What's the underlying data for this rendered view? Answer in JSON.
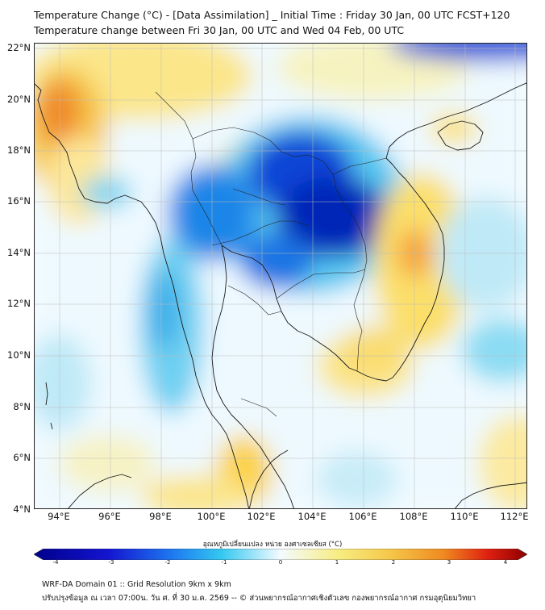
{
  "title_line1": "Temperature Change (°C) - [Data Assimilation] _ Initial Time : Friday 30 Jan, 00 UTC FCST+120",
  "title_line2": "Temperature change between Fri 30 Jan, 00 UTC and Wed 04 Feb, 00 UTC",
  "map": {
    "lat_range": [
      4,
      22
    ],
    "lon_range": [
      93,
      112.5
    ],
    "lat_labels": [
      "22°N",
      "20°N",
      "18°N",
      "16°N",
      "14°N",
      "12°N",
      "10°N",
      "8°N",
      "6°N",
      "4°N"
    ],
    "lon_labels": [
      "94°E",
      "96°E",
      "98°E",
      "100°E",
      "102°E",
      "104°E",
      "106°E",
      "108°E",
      "110°E",
      "112°E"
    ]
  },
  "colorbar": {
    "label": "อุณหภูมิเปลี่ยนแปลง หน่วย องศาเซลเซียส (°C)",
    "min": -4,
    "max": 4,
    "ticks": [
      "-4",
      "-3",
      "-2",
      "-1",
      "0",
      "1",
      "2",
      "3",
      "4"
    ],
    "colors": {
      "strong_cool": "#00008b",
      "cool": "#0050e0",
      "mild_cool": "#33c8f0",
      "neutral": "#f4fbff",
      "mild_warm": "#f5e060",
      "warm": "#f08a20",
      "strong_warm": "#8b0000"
    }
  },
  "footer": {
    "line1": "WRF-DA Domain 01 :: Grid Resolution 9km x 9km",
    "line2": "ปรับปรุงข้อมูล ณ เวลา 07:00น. วัน ศ. ที่ 30 ม.ค. 2569 -- © ส่วนพยากรณ์อากาศเชิงตัวเลข กองพยากรณ์อากาศ กรมอุตุนิยมวิทยา"
  }
}
